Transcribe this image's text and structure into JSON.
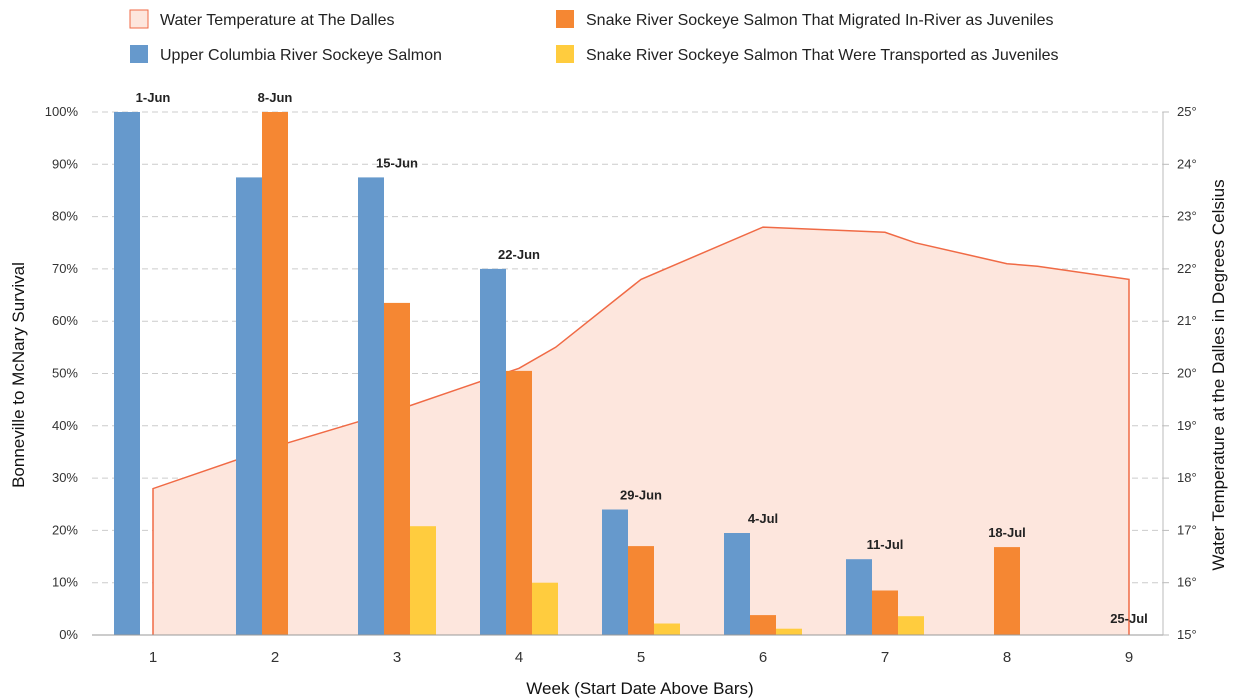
{
  "chart_data": {
    "type": "bar",
    "legend": {
      "placement": "top",
      "entries": [
        {
          "label": "Water Temperature at The Dalles",
          "key": "temp"
        },
        {
          "label": "Snake River Sockeye Salmon That Migrated In-River as Juveniles",
          "key": "snake_inriver"
        },
        {
          "label": "Upper Columbia River Sockeye Salmon",
          "key": "upper_columbia"
        },
        {
          "label": "Snake River Sockeye Salmon That Were Transported as Juveniles",
          "key": "snake_transported"
        }
      ]
    },
    "xlabel": "Week (Start Date Above Bars)",
    "ylabel": "Bonneville to McNary Survival",
    "y2label": "Water Temperature at the Dalles in Degrees Celsius",
    "categories": [
      "1",
      "2",
      "3",
      "4",
      "5",
      "6",
      "7",
      "8",
      "9"
    ],
    "date_labels": [
      "1-Jun",
      "8-Jun",
      "15-Jun",
      "22-Jun",
      "29-Jun",
      "4-Jul",
      "11-Jul",
      "18-Jul",
      "25-Jul"
    ],
    "ylim": [
      0,
      100
    ],
    "y_ticks": [
      "0%",
      "10%",
      "20%",
      "30%",
      "40%",
      "50%",
      "60%",
      "70%",
      "80%",
      "90%",
      "100%"
    ],
    "y2lim": [
      15,
      25
    ],
    "y2_ticks": [
      "15°",
      "16°",
      "17°",
      "18°",
      "19°",
      "20°",
      "21°",
      "22°",
      "23°",
      "24°",
      "25°"
    ],
    "grid": "horizontal dashed",
    "series": [
      {
        "name": "Upper Columbia River Sockeye Salmon",
        "key": "upper_columbia",
        "color": "#6699CC",
        "values": [
          100,
          87.5,
          87.5,
          70,
          24,
          19.5,
          14.5,
          null,
          null
        ]
      },
      {
        "name": "Snake River Sockeye Salmon That Migrated In-River as Juveniles",
        "key": "snake_inriver",
        "color": "#F58733",
        "values": [
          null,
          100,
          63.5,
          50.5,
          17,
          3.8,
          8.5,
          16.8,
          null
        ]
      },
      {
        "name": "Snake River Sockeye Salmon That Were Transported as Juveniles",
        "key": "snake_transported",
        "color": "#FFCC3E",
        "values": [
          null,
          null,
          20.8,
          10,
          2.2,
          1.2,
          3.6,
          null,
          null
        ]
      }
    ],
    "temperature": {
      "name": "Water Temperature at The Dalles",
      "key": "temp",
      "type": "area",
      "line_color": "#F06A45",
      "fill_color": "#FDE6DD",
      "x": [
        1,
        2,
        3,
        3.5,
        4,
        4.3,
        5,
        6,
        7,
        7.25,
        8,
        8.25,
        9
      ],
      "y": [
        17.8,
        18.6,
        19.3,
        19.7,
        20.1,
        20.5,
        21.8,
        22.8,
        22.7,
        22.5,
        22.1,
        22.05,
        21.8
      ]
    }
  }
}
